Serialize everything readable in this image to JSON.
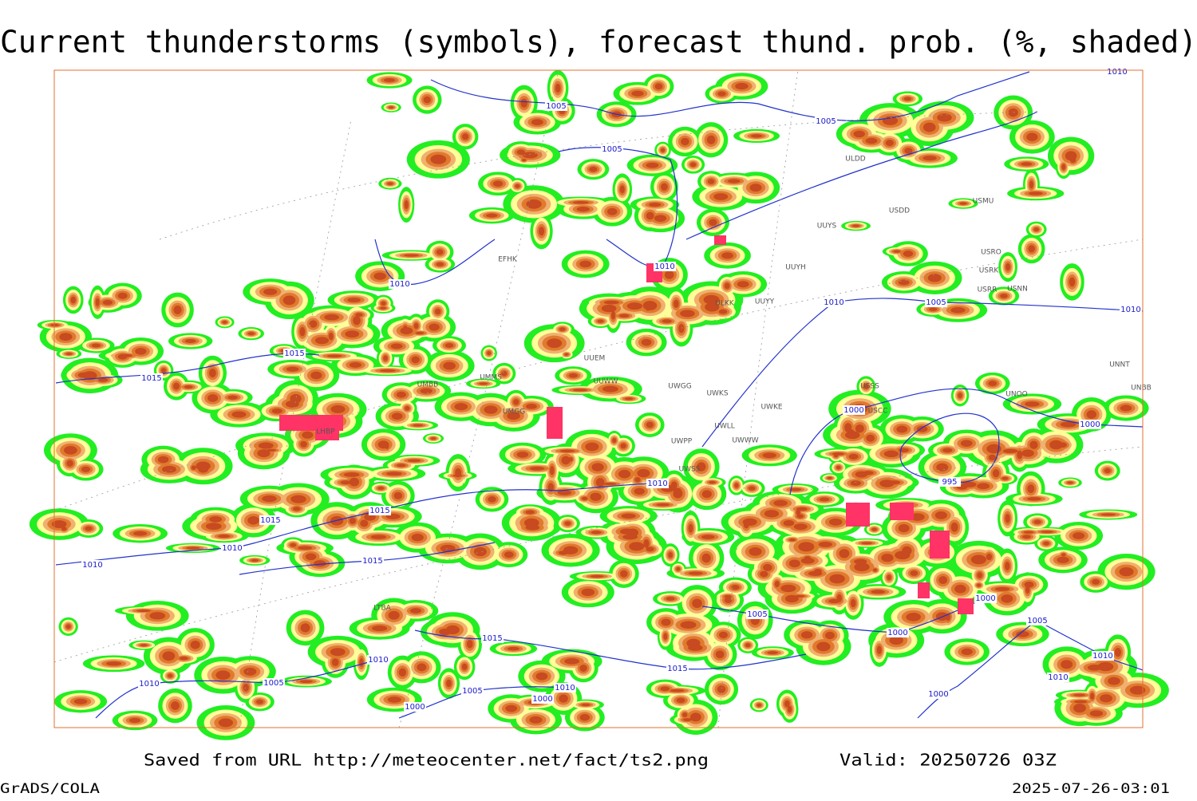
{
  "header": {
    "title": "Current thunderstorms (symbols), forecast thund. prob. (%, shaded)"
  },
  "isobar_labels": [
    "1005",
    "1005",
    "1005",
    "1010",
    "1010",
    "1015",
    "1015",
    "1010",
    "1005",
    "1010",
    "1000",
    "1000",
    "995",
    "1010",
    "1015",
    "1015",
    "1010",
    "1010",
    "1015",
    "1005",
    "1000",
    "1000",
    "1015",
    "1010",
    "1015",
    "1005",
    "1010",
    "1005",
    "1010",
    "1000",
    "1000",
    "1010",
    "1010",
    "1005",
    "1000",
    "1010"
  ],
  "stations": [
    "ULDD",
    "UUYS",
    "USDD",
    "USMU",
    "USRO",
    "USRK",
    "USRR",
    "USNN",
    "UUYH",
    "ULKK",
    "UUYY",
    "UUEM",
    "UUWW",
    "UWGG",
    "UWKS",
    "UWKE",
    "UWLL",
    "UWWW",
    "UWPP",
    "UWSS",
    "USSS",
    "USCC",
    "UNNT",
    "UNBB",
    "UNOO",
    "UMMS",
    "UMBB",
    "UMGG",
    "LHBP",
    "EFHK",
    "LTBA"
  ],
  "footer": {
    "source": "Saved from URL http://meteocenter.net/fact/ts2.png",
    "valid": "Valid: 20250726 03Z",
    "software": "GrADS/COLA",
    "timestamp": "2025-07-26-03:01"
  }
}
